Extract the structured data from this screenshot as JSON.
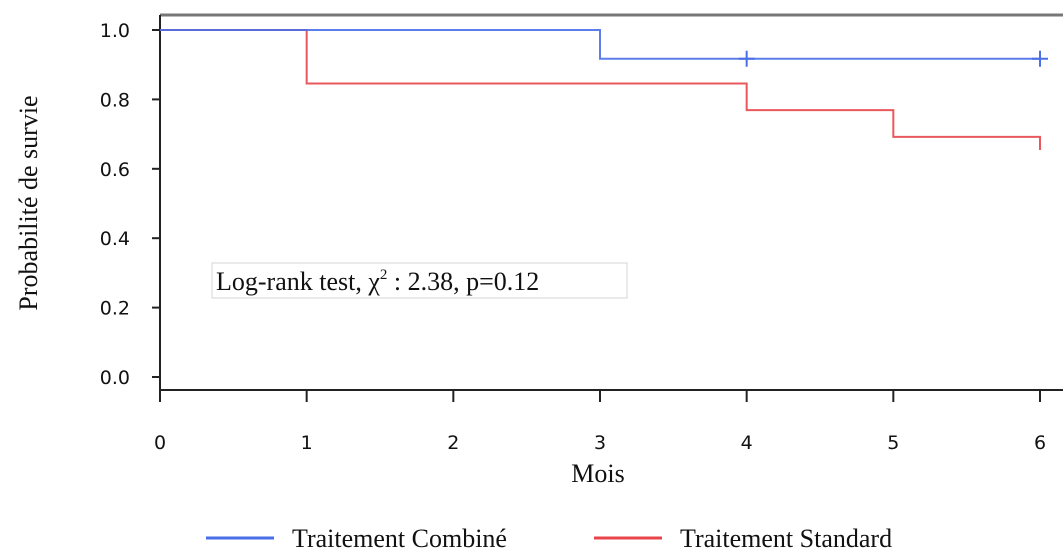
{
  "chart_data": {
    "type": "line",
    "title": "",
    "xlabel": "Mois",
    "ylabel": "Probabilité de survie",
    "xlim": [
      0,
      6
    ],
    "ylim": [
      0,
      1
    ],
    "x_ticks": [
      "0",
      "1",
      "2",
      "3",
      "4",
      "5",
      "6"
    ],
    "y_ticks": [
      "0.0",
      "0.2",
      "0.4",
      "0.6",
      "0.8",
      "1.0"
    ],
    "grid": false,
    "legend_position": "bottom",
    "step": true,
    "series": [
      {
        "name": "Traitement Combiné",
        "color": "#4a6fe8",
        "x": [
          0,
          3,
          6
        ],
        "y": [
          1.0,
          0.917,
          0.917
        ],
        "censor_x": [
          4,
          6
        ],
        "censor_y": [
          0.917,
          0.917
        ]
      },
      {
        "name": "Traitement Standard",
        "color": "#e8454a",
        "x": [
          0,
          1,
          4,
          5,
          6
        ],
        "y": [
          1.0,
          0.846,
          0.769,
          0.692,
          0.654
        ],
        "censor_x": [],
        "censor_y": []
      }
    ],
    "annotation": {
      "prefix": "Log-rank test, χ",
      "superscript": "2",
      "suffix": " : 2.38, p=0.12"
    }
  }
}
